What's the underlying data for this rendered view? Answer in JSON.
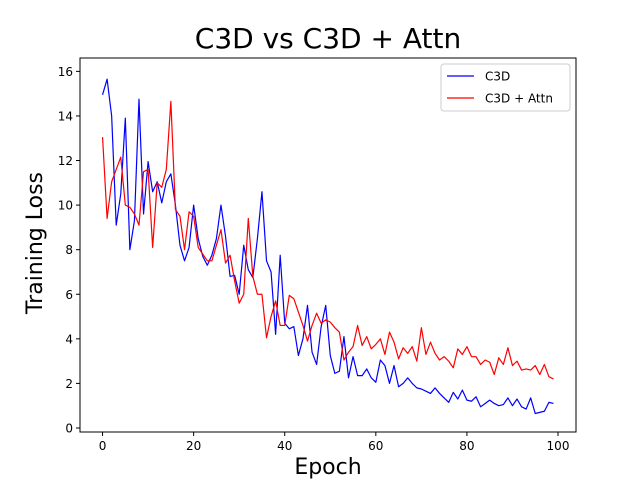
{
  "chart_data": {
    "type": "line",
    "title": "C3D vs C3D + Attn",
    "xlabel": "Epoch",
    "ylabel": "Training Loss",
    "xlim": [
      -4.95,
      103.95
    ],
    "ylim": [
      -0.18,
      16.6
    ],
    "xticks": [
      0,
      20,
      40,
      60,
      80,
      100
    ],
    "yticks": [
      0,
      2,
      4,
      6,
      8,
      10,
      12,
      14,
      16
    ],
    "grid": false,
    "legend_position": "top-right",
    "x": [
      0,
      1,
      2,
      3,
      4,
      5,
      6,
      7,
      8,
      9,
      10,
      11,
      12,
      13,
      14,
      15,
      16,
      17,
      18,
      19,
      20,
      21,
      22,
      23,
      24,
      25,
      26,
      27,
      28,
      29,
      30,
      31,
      32,
      33,
      34,
      35,
      36,
      37,
      38,
      39,
      40,
      41,
      42,
      43,
      44,
      45,
      46,
      47,
      48,
      49,
      50,
      51,
      52,
      53,
      54,
      55,
      56,
      57,
      58,
      59,
      60,
      61,
      62,
      63,
      64,
      65,
      66,
      67,
      68,
      69,
      70,
      71,
      72,
      73,
      74,
      75,
      76,
      77,
      78,
      79,
      80,
      81,
      82,
      83,
      84,
      85,
      86,
      87,
      88,
      89,
      90,
      91,
      92,
      93,
      94,
      95,
      96,
      97,
      98,
      99
    ],
    "series": [
      {
        "name": "C3D",
        "color": "#0000ff",
        "values": [
          14.95,
          15.65,
          14.0,
          9.1,
          10.5,
          13.9,
          8.0,
          9.3,
          14.75,
          9.6,
          11.95,
          10.6,
          11.05,
          10.1,
          11.05,
          11.4,
          10.0,
          8.2,
          7.5,
          8.1,
          10.0,
          8.5,
          7.7,
          7.3,
          7.75,
          8.5,
          10.0,
          8.6,
          6.8,
          6.85,
          6.0,
          8.2,
          7.1,
          6.75,
          8.5,
          10.6,
          7.5,
          7.0,
          4.2,
          7.75,
          4.7,
          4.45,
          4.55,
          3.25,
          4.0,
          5.5,
          3.4,
          2.85,
          4.55,
          5.5,
          3.25,
          2.45,
          2.55,
          4.1,
          2.25,
          3.2,
          2.35,
          2.35,
          2.65,
          2.25,
          2.05,
          3.05,
          2.8,
          2.0,
          2.8,
          1.85,
          2.0,
          2.25,
          2.0,
          1.8,
          1.75,
          1.65,
          1.55,
          1.8,
          1.55,
          1.35,
          1.15,
          1.6,
          1.3,
          1.7,
          1.25,
          1.2,
          1.4,
          0.95,
          1.1,
          1.25,
          1.1,
          1.0,
          1.05,
          1.35,
          1.0,
          1.3,
          0.95,
          0.85,
          1.35,
          0.65,
          0.7,
          0.75,
          1.15,
          1.1
        ]
      },
      {
        "name": "C3D + Attn",
        "color": "#ff0000",
        "values": [
          13.05,
          9.4,
          11.05,
          11.6,
          12.15,
          10.0,
          9.9,
          9.6,
          9.1,
          11.5,
          11.6,
          8.1,
          11.0,
          10.8,
          11.6,
          14.65,
          9.8,
          9.5,
          8.0,
          9.7,
          9.5,
          8.1,
          7.8,
          7.5,
          7.5,
          8.2,
          8.9,
          7.4,
          7.75,
          6.6,
          5.6,
          6.0,
          9.4,
          6.8,
          6.0,
          6.0,
          4.05,
          5.0,
          5.7,
          4.6,
          4.6,
          5.95,
          5.8,
          5.2,
          4.6,
          3.9,
          4.6,
          5.15,
          4.7,
          4.85,
          4.75,
          4.5,
          4.3,
          3.05,
          3.4,
          3.65,
          4.6,
          3.7,
          4.1,
          3.55,
          3.75,
          4.0,
          3.3,
          4.3,
          3.85,
          3.1,
          3.6,
          3.35,
          3.65,
          3.0,
          4.5,
          3.3,
          3.85,
          3.35,
          3.05,
          3.2,
          3.0,
          2.7,
          3.55,
          3.3,
          3.65,
          3.2,
          3.2,
          2.85,
          3.05,
          2.95,
          2.4,
          3.15,
          2.85,
          3.6,
          2.8,
          3.0,
          2.6,
          2.65,
          2.6,
          2.8,
          2.4,
          2.85,
          2.3,
          2.2
        ]
      }
    ]
  }
}
